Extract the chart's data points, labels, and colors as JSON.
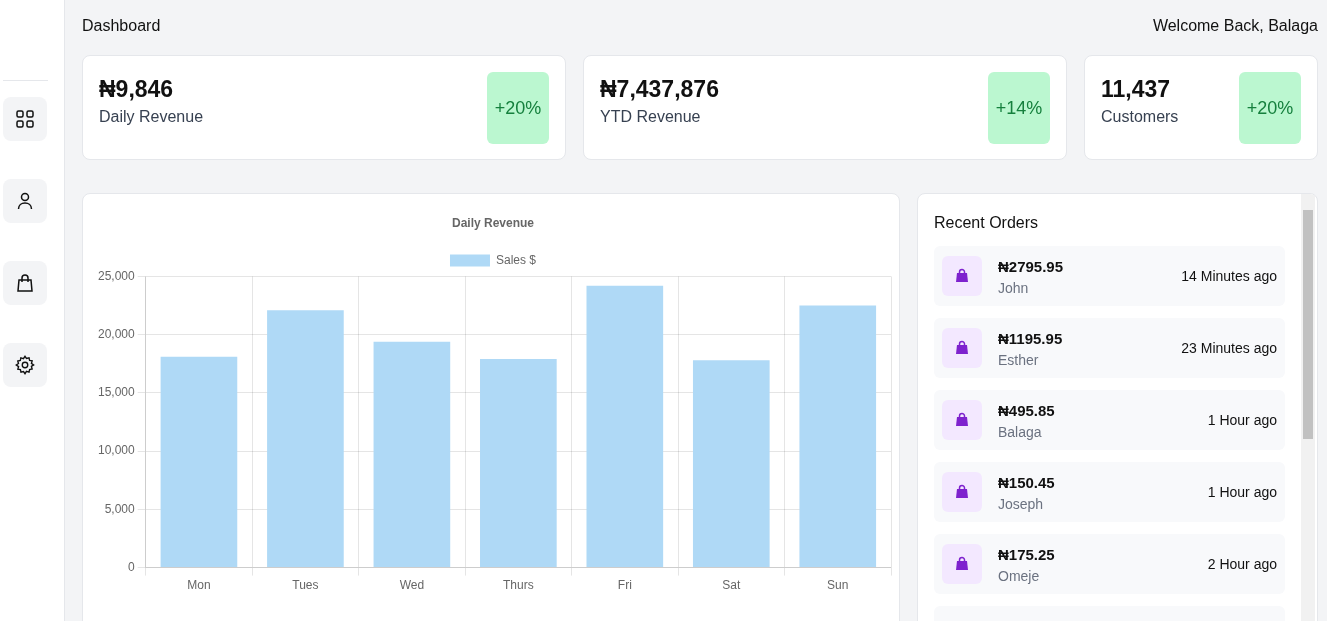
{
  "chart_data": [
    {
      "type": "other",
      "title": "Dashboard",
      "annotations": [
        "Welcome Back, Balaga"
      ]
    },
    {
      "type": "other",
      "title": "₦9,846",
      "subtitle": "Daily Revenue",
      "annotations": [
        "+20%"
      ]
    },
    {
      "type": "other",
      "title": "₦7,437,876",
      "subtitle": "YTD Revenue",
      "annotations": [
        "+14%"
      ]
    },
    {
      "type": "other",
      "title": "11,437",
      "subtitle": "Customers",
      "annotations": [
        "+20%"
      ]
    },
    {
      "type": "bar",
      "title": "Daily Revenue",
      "categories": [
        "Mon",
        "Tues",
        "Wed",
        "Thurs",
        "Fri",
        "Sat",
        "Sun"
      ],
      "series": [
        {
          "name": "Sales $",
          "color": "#afd9f6",
          "values": [
            18100,
            22100,
            19400,
            17900,
            24200,
            17800,
            22500
          ]
        }
      ],
      "ylim": [
        0,
        25000
      ],
      "yticks": [
        {
          "value": 0,
          "label": "0"
        },
        {
          "value": 5000,
          "label": "5,000"
        },
        {
          "value": 10000,
          "label": "10,000"
        },
        {
          "value": 15000,
          "label": "15,000"
        },
        {
          "value": 20000,
          "label": "20,000"
        },
        {
          "value": 25000,
          "label": "25,000"
        }
      ],
      "grid": true,
      "legend": "top"
    },
    {
      "type": "other",
      "title": "Recent Orders",
      "annotations": [
        "₦2795.95",
        "John",
        "14 Minutes ago",
        "₦1195.95",
        "Esther",
        "23 Minutes ago",
        "₦495.85",
        "Balaga",
        "1 Hour ago",
        "₦150.45",
        "Joseph",
        "1 Hour ago",
        "₦175.25",
        "Omeje",
        "2 Hour ago"
      ]
    }
  ]
}
